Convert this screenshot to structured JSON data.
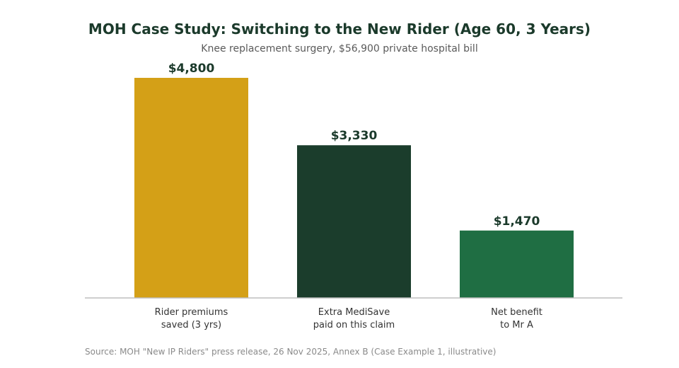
{
  "chart_data": {
    "type": "bar",
    "title": "MOH Case Study: Switching to the New Rider (Age 60, 3 Years)",
    "subtitle": "Knee replacement surgery, $56,900 private hospital bill",
    "categories": [
      [
        "Rider premiums",
        "saved (3 yrs)"
      ],
      [
        "Extra MediSave",
        "paid on this claim"
      ],
      [
        "Net benefit",
        "to Mr A"
      ]
    ],
    "values": [
      4800,
      3330,
      1470
    ],
    "value_labels": [
      "$4,800",
      "$3,330",
      "$1,470"
    ],
    "colors": [
      "#d4a017",
      "#1b3d2c",
      "#1f6e43"
    ],
    "ylim": [
      0,
      5500
    ],
    "grid": false,
    "legend": "none",
    "source": "Source: MOH \"New IP Riders\" press release, 26 Nov 2025, Annex B (Case Example 1, illustrative)"
  }
}
